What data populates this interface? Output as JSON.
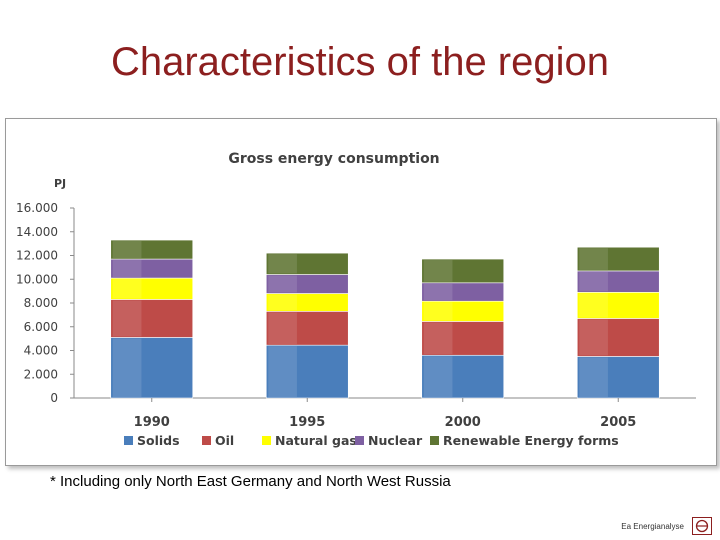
{
  "slide": {
    "title": "Characteristics of the region",
    "footnote": "* Including only North East Germany and North West Russia",
    "brand": "Ea Energianalyse"
  },
  "colors": {
    "title": "#8c1f1f",
    "series": [
      "#4a7ebb",
      "#be4b48",
      "#ffff00",
      "#7e60a2",
      "#5f7533"
    ]
  },
  "icons": {
    "brand_logo": "ea-logo-icon"
  },
  "chart_data": {
    "type": "bar",
    "stacked": true,
    "title": "Gross energy consumption",
    "ylabel": "PJ",
    "xlabel": "",
    "ylim": [
      0,
      16000
    ],
    "yticks": [
      0,
      2000,
      4000,
      6000,
      8000,
      10000,
      12000,
      14000,
      16000
    ],
    "ytick_labels": [
      "0",
      "2.000",
      "4.000",
      "6.000",
      "8.000",
      "10.000",
      "12.000",
      "14.000",
      "16.000"
    ],
    "categories": [
      "1990",
      "1995",
      "2000",
      "2005"
    ],
    "series": [
      {
        "name": "Solids",
        "values": [
          5100,
          4450,
          3600,
          3500
        ]
      },
      {
        "name": "Oil",
        "values": [
          3200,
          2850,
          2850,
          3200
        ]
      },
      {
        "name": "Natural gas",
        "values": [
          1800,
          1500,
          1700,
          2200
        ]
      },
      {
        "name": "Nuclear",
        "values": [
          1600,
          1600,
          1550,
          1800
        ]
      },
      {
        "name": "Renewable Energy forms",
        "values": [
          1600,
          1800,
          2000,
          2000
        ]
      }
    ],
    "grid": false,
    "legend": "bottom"
  }
}
